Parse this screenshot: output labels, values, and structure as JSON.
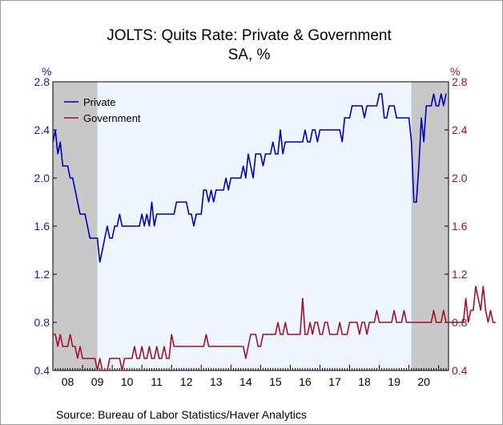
{
  "chart_data": {
    "type": "line",
    "title": "JOLTS: Quits Rate: Private & Government",
    "subtitle": "SA, %",
    "left_axis_label": "%",
    "right_axis_label": "%",
    "ylim": [
      0.4,
      2.8
    ],
    "y_ticks": [
      "2.8",
      "2.4",
      "2.0",
      "1.6",
      "1.2",
      "0.8",
      "0.4"
    ],
    "x_tick_labels": [
      "08",
      "09",
      "10",
      "11",
      "12",
      "13",
      "14",
      "15",
      "16",
      "17",
      "18",
      "19",
      "20"
    ],
    "x_start_year": 2008,
    "x_end_year": 2021,
    "grid": false,
    "legend_placement": "top-left",
    "recession_shading": [
      {
        "start": "2008-01",
        "end": "2009-06"
      },
      {
        "start": "2020-02",
        "end": "2021-04"
      }
    ],
    "colors": {
      "private": "#0000b4",
      "government": "#a0102a",
      "plot_background": "#eef5fe",
      "recession": "#c8c8c8",
      "left_axis": "#1a1aa8",
      "right_axis": "#a0102a"
    },
    "series": [
      {
        "name": "Private",
        "color": "#0000b4",
        "start": "2008-01",
        "values": [
          2.3,
          2.4,
          2.2,
          2.3,
          2.1,
          2.1,
          2.1,
          2.0,
          2.0,
          1.9,
          1.8,
          1.7,
          1.7,
          1.7,
          1.6,
          1.5,
          1.5,
          1.5,
          1.5,
          1.3,
          1.4,
          1.5,
          1.6,
          1.5,
          1.5,
          1.6,
          1.6,
          1.7,
          1.6,
          1.6,
          1.6,
          1.6,
          1.6,
          1.6,
          1.6,
          1.6,
          1.7,
          1.6,
          1.7,
          1.6,
          1.8,
          1.6,
          1.7,
          1.7,
          1.7,
          1.7,
          1.7,
          1.7,
          1.7,
          1.7,
          1.8,
          1.8,
          1.8,
          1.8,
          1.8,
          1.7,
          1.7,
          1.6,
          1.7,
          1.7,
          1.7,
          1.9,
          1.9,
          1.8,
          1.9,
          1.8,
          1.9,
          1.9,
          1.9,
          1.9,
          2.0,
          1.9,
          2.0,
          2.0,
          2.0,
          2.0,
          2.0,
          2.1,
          2.0,
          2.2,
          2.1,
          2.0,
          2.2,
          2.2,
          2.2,
          2.1,
          2.2,
          2.2,
          2.2,
          2.3,
          2.2,
          2.2,
          2.4,
          2.2,
          2.3,
          2.3,
          2.3,
          2.3,
          2.3,
          2.3,
          2.3,
          2.3,
          2.4,
          2.3,
          2.3,
          2.4,
          2.4,
          2.3,
          2.4,
          2.4,
          2.4,
          2.4,
          2.4,
          2.4,
          2.4,
          2.4,
          2.4,
          2.3,
          2.5,
          2.5,
          2.5,
          2.6,
          2.6,
          2.6,
          2.6,
          2.6,
          2.5,
          2.6,
          2.6,
          2.6,
          2.6,
          2.6,
          2.7,
          2.7,
          2.5,
          2.5,
          2.6,
          2.6,
          2.6,
          2.5,
          2.5,
          2.5,
          2.5,
          2.5,
          2.5,
          2.3,
          1.8,
          1.8,
          2.1,
          2.5,
          2.3,
          2.6,
          2.6,
          2.6,
          2.7,
          2.6,
          2.6,
          2.7,
          2.6,
          2.7
        ]
      },
      {
        "name": "Government",
        "color": "#a0102a",
        "start": "2008-01",
        "values": [
          0.7,
          0.7,
          0.6,
          0.7,
          0.6,
          0.6,
          0.6,
          0.7,
          0.6,
          0.6,
          0.5,
          0.6,
          0.5,
          0.5,
          0.5,
          0.5,
          0.5,
          0.5,
          0.4,
          0.5,
          0.4,
          0.4,
          0.4,
          0.5,
          0.5,
          0.5,
          0.5,
          0.5,
          0.4,
          0.5,
          0.5,
          0.5,
          0.5,
          0.6,
          0.5,
          0.5,
          0.6,
          0.5,
          0.5,
          0.6,
          0.5,
          0.5,
          0.6,
          0.5,
          0.5,
          0.6,
          0.5,
          0.5,
          0.7,
          0.6,
          0.6,
          0.6,
          0.6,
          0.6,
          0.6,
          0.6,
          0.6,
          0.6,
          0.6,
          0.6,
          0.6,
          0.6,
          0.7,
          0.6,
          0.6,
          0.6,
          0.6,
          0.6,
          0.6,
          0.6,
          0.6,
          0.6,
          0.6,
          0.6,
          0.6,
          0.6,
          0.6,
          0.6,
          0.5,
          0.6,
          0.7,
          0.7,
          0.7,
          0.6,
          0.6,
          0.7,
          0.7,
          0.7,
          0.7,
          0.7,
          0.7,
          0.8,
          0.7,
          0.7,
          0.8,
          0.7,
          0.7,
          0.7,
          0.7,
          0.7,
          0.7,
          1.0,
          0.7,
          0.7,
          0.8,
          0.7,
          0.8,
          0.8,
          0.7,
          0.7,
          0.8,
          0.8,
          0.7,
          0.7,
          0.7,
          0.7,
          0.8,
          0.7,
          0.7,
          0.7,
          0.8,
          0.8,
          0.8,
          0.8,
          0.7,
          0.8,
          0.8,
          0.7,
          0.8,
          0.8,
          0.8,
          0.9,
          0.8,
          0.8,
          0.8,
          0.8,
          0.8,
          0.8,
          0.9,
          0.8,
          0.8,
          0.8,
          0.9,
          0.8,
          0.8,
          0.8,
          0.8,
          0.8,
          0.8,
          0.8,
          0.8,
          0.8,
          0.8,
          0.8,
          0.9,
          0.8,
          0.8,
          0.8,
          0.9,
          0.8,
          0.8,
          0.8,
          0.8,
          0.8,
          0.8,
          0.8,
          0.8,
          1.0,
          0.8,
          0.9,
          0.9,
          1.1,
          1.0,
          0.9,
          1.1,
          0.9,
          0.8,
          0.9,
          0.8,
          0.8
        ]
      }
    ],
    "source": "Source:  Bureau of Labor Statistics/Haver Analytics"
  }
}
